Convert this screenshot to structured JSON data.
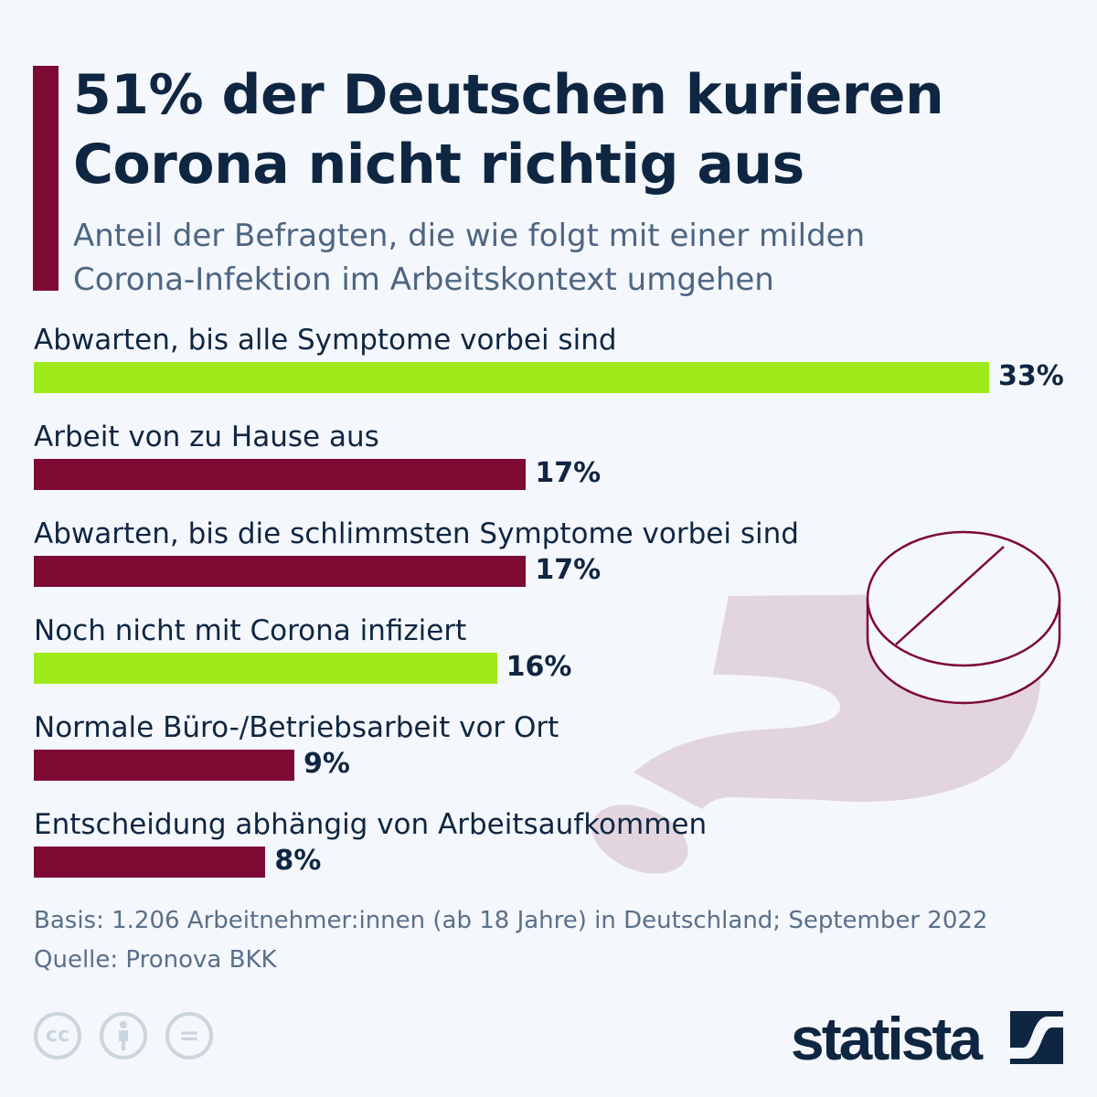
{
  "title": "51% der Deutschen kurieren Corona nicht richtig aus",
  "title_lines": [
    "51% der Deutschen kurieren",
    "Corona nicht richtig aus"
  ],
  "subtitle_lines": [
    "Anteil der Befragten, die wie folgt mit einer milden",
    "Corona-Infektion im Arbeitskontext umgehen"
  ],
  "colors": {
    "accent": "#7d0a33",
    "highlight": "#9eea18",
    "text": "#0f2642",
    "decoration": "#e2d5de"
  },
  "chart_data": {
    "type": "bar",
    "orientation": "horizontal",
    "categories": [
      "Abwarten, bis alle Symptome vorbei sind",
      "Arbeit von zu Hause aus",
      "Abwarten, bis die schlimmsten Symptome vorbei sind",
      "Noch nicht mit Corona infiziert",
      "Normale Büro-/Betriebsarbeit vor Ort",
      "Entscheidung abhängig von Arbeitsaufkommen"
    ],
    "values": [
      33,
      17,
      17,
      16,
      9,
      8
    ],
    "data_labels": [
      "33%",
      "17%",
      "17%",
      "16%",
      "9%",
      "8%"
    ],
    "bar_colors": [
      "#9eea18",
      "#7d0a33",
      "#7d0a33",
      "#9eea18",
      "#7d0a33",
      "#7d0a33"
    ],
    "unit": "%",
    "xlim": [
      0,
      33
    ],
    "grid": false
  },
  "footer": {
    "basis": "Basis: 1.206 Arbeitnehmer:innen (ab 18 Jahre) in Deutschland; September 2022",
    "source": "Quelle: Pronova BKK"
  },
  "license_icons": [
    "cc-icon",
    "attribution-icon",
    "no-derivatives-icon"
  ],
  "license_labels": {
    "cc": "cc",
    "eq": "="
  },
  "logo": "statista"
}
